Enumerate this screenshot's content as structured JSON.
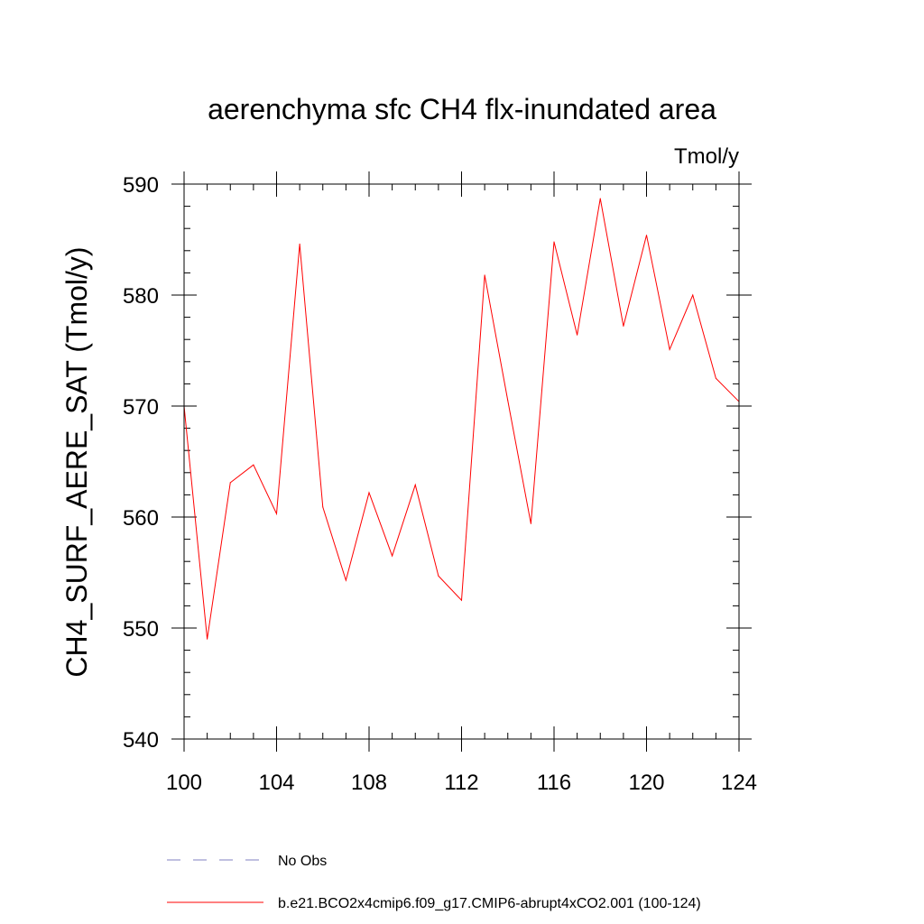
{
  "chart_data": {
    "type": "line",
    "title": "aerenchyma sfc CH4 flx-inundated area",
    "units": "Tmol/y",
    "xlabel": "",
    "ylabel": "CH4_SURF_AERE_SAT  (Tmol/y)",
    "xlim": [
      100,
      124
    ],
    "ylim": [
      540,
      590
    ],
    "xticks": [
      100,
      104,
      108,
      112,
      116,
      120,
      124
    ],
    "yticks": [
      540,
      550,
      560,
      570,
      580,
      590
    ],
    "x": [
      100,
      101,
      102,
      103,
      104,
      105,
      106,
      107,
      108,
      109,
      110,
      111,
      112,
      113,
      114,
      115,
      116,
      117,
      118,
      119,
      120,
      121,
      122,
      123,
      124
    ],
    "series": [
      {
        "name": "b.e21.BCO2x4cmip6.f09_g17.CMIP6-abrupt4xCO2.001 (100-124)",
        "color": "#ff0000",
        "values": [
          570.0,
          549.0,
          563.1,
          564.7,
          560.3,
          584.6,
          560.9,
          554.3,
          562.2,
          556.5,
          562.9,
          554.7,
          552.5,
          581.8,
          570.5,
          559.4,
          584.8,
          576.4,
          588.7,
          577.2,
          585.4,
          575.1,
          580.0,
          572.5,
          570.4
        ]
      }
    ],
    "legend": [
      {
        "label": "No Obs",
        "style": "dashed",
        "color": "#8080c0"
      },
      {
        "label": "b.e21.BCO2x4cmip6.f09_g17.CMIP6-abrupt4xCO2.001 (100-124)",
        "style": "solid",
        "color": "#ff0000"
      }
    ],
    "legend_position": "bottom-left"
  }
}
